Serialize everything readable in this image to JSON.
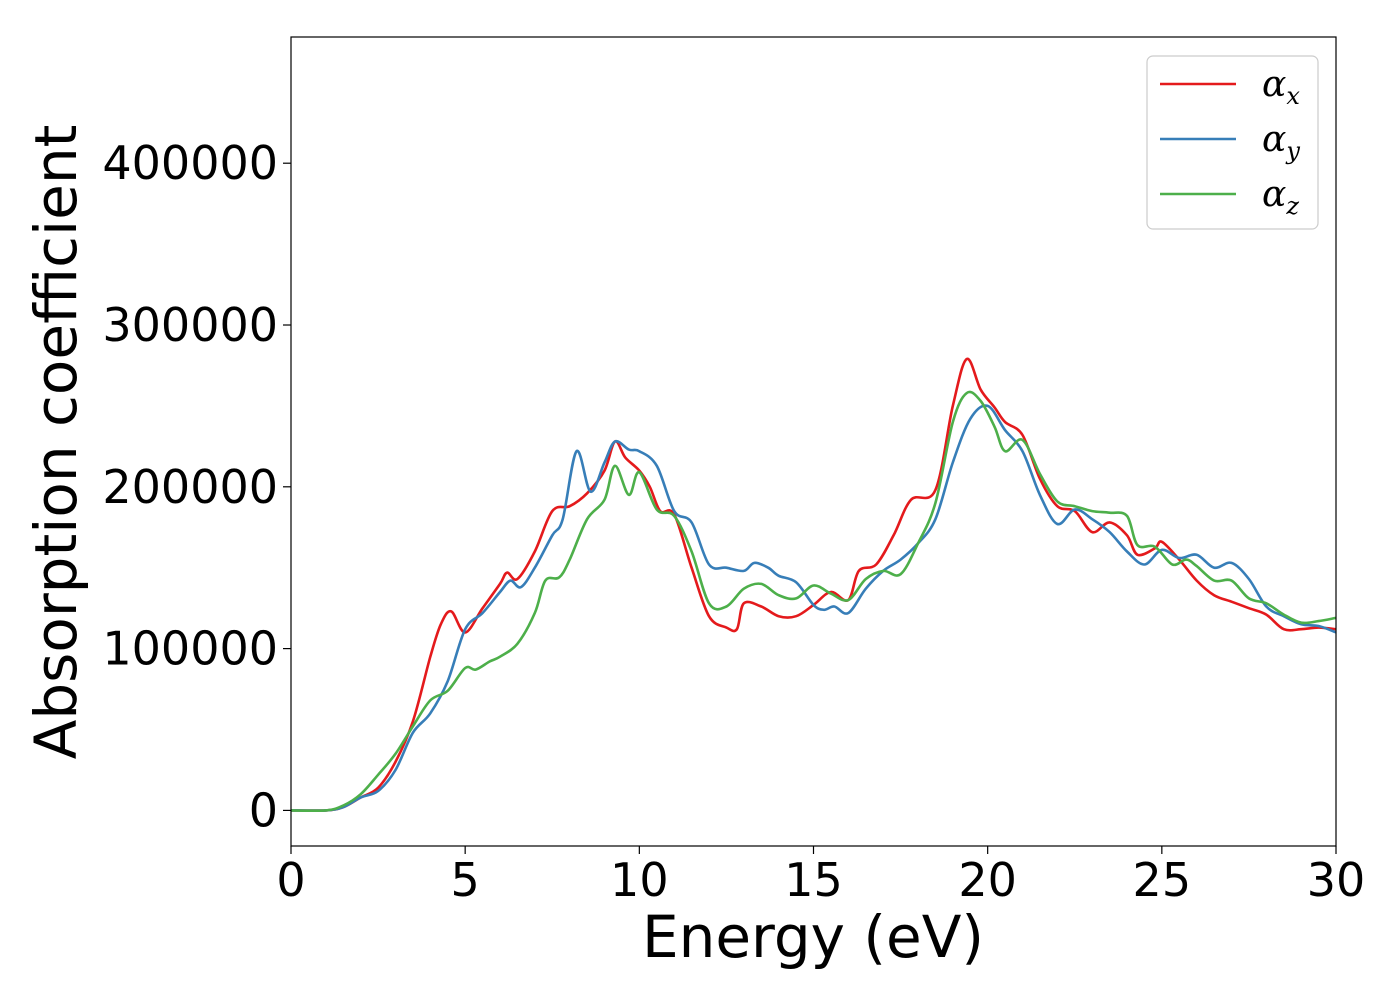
{
  "chart_data": {
    "type": "line",
    "xlabel": "Energy (eV)",
    "ylabel": "Absorption coefficient",
    "xlim": [
      0,
      30
    ],
    "ylim": [
      -22000,
      478000
    ],
    "xticks": [
      0,
      5,
      10,
      15,
      20,
      25,
      30
    ],
    "xtick_labels": [
      "0",
      "5",
      "10",
      "15",
      "20",
      "25",
      "30"
    ],
    "yticks": [
      0,
      100000,
      200000,
      300000,
      400000
    ],
    "ytick_labels": [
      "0",
      "100000",
      "200000",
      "300000",
      "400000"
    ],
    "grid": false,
    "legend_position": "top-right",
    "series": [
      {
        "name": "α",
        "subscript": "x",
        "color": "#e41a1c",
        "points": [
          [
            0,
            0
          ],
          [
            1,
            0
          ],
          [
            1.5,
            2000
          ],
          [
            2,
            8000
          ],
          [
            2.5,
            14000
          ],
          [
            3,
            30000
          ],
          [
            3.5,
            55000
          ],
          [
            4,
            95000
          ],
          [
            4.3,
            115000
          ],
          [
            4.6,
            123000
          ],
          [
            5,
            110000
          ],
          [
            5.5,
            125000
          ],
          [
            6,
            140000
          ],
          [
            6.2,
            147000
          ],
          [
            6.5,
            143000
          ],
          [
            7,
            160000
          ],
          [
            7.5,
            185000
          ],
          [
            8,
            188000
          ],
          [
            8.5,
            196000
          ],
          [
            9,
            210000
          ],
          [
            9.3,
            228000
          ],
          [
            9.6,
            218000
          ],
          [
            10,
            210000
          ],
          [
            10.3,
            200000
          ],
          [
            10.6,
            185000
          ],
          [
            11,
            183000
          ],
          [
            11.5,
            150000
          ],
          [
            12,
            120000
          ],
          [
            12.5,
            113000
          ],
          [
            12.8,
            112000
          ],
          [
            13,
            128000
          ],
          [
            13.5,
            126000
          ],
          [
            14,
            120000
          ],
          [
            14.5,
            120000
          ],
          [
            15,
            127000
          ],
          [
            15.5,
            135000
          ],
          [
            16,
            130000
          ],
          [
            16.3,
            148000
          ],
          [
            16.8,
            152000
          ],
          [
            17.3,
            170000
          ],
          [
            17.8,
            192000
          ],
          [
            18.5,
            198000
          ],
          [
            19,
            250000
          ],
          [
            19.4,
            279000
          ],
          [
            19.8,
            260000
          ],
          [
            20.2,
            249000
          ],
          [
            20.5,
            240000
          ],
          [
            21,
            232000
          ],
          [
            21.5,
            205000
          ],
          [
            22,
            188000
          ],
          [
            22.5,
            185000
          ],
          [
            23,
            172000
          ],
          [
            23.5,
            178000
          ],
          [
            24,
            170000
          ],
          [
            24.3,
            158000
          ],
          [
            24.8,
            162000
          ],
          [
            25,
            166000
          ],
          [
            25.5,
            155000
          ],
          [
            26,
            142000
          ],
          [
            26.5,
            133000
          ],
          [
            27,
            129000
          ],
          [
            27.5,
            125000
          ],
          [
            28,
            121000
          ],
          [
            28.5,
            112000
          ],
          [
            29,
            112000
          ],
          [
            29.5,
            113000
          ],
          [
            30,
            112000
          ]
        ]
      },
      {
        "name": "α",
        "subscript": "y",
        "color": "#377eb8",
        "points": [
          [
            0,
            0
          ],
          [
            1,
            0
          ],
          [
            1.5,
            2000
          ],
          [
            2,
            8000
          ],
          [
            2.5,
            12000
          ],
          [
            3,
            25000
          ],
          [
            3.5,
            48000
          ],
          [
            4,
            60000
          ],
          [
            4.5,
            80000
          ],
          [
            5,
            112000
          ],
          [
            5.5,
            122000
          ],
          [
            6,
            135000
          ],
          [
            6.3,
            142000
          ],
          [
            6.6,
            138000
          ],
          [
            7,
            150000
          ],
          [
            7.5,
            170000
          ],
          [
            7.8,
            180000
          ],
          [
            8.2,
            222000
          ],
          [
            8.6,
            197000
          ],
          [
            9,
            215000
          ],
          [
            9.3,
            228000
          ],
          [
            9.7,
            223000
          ],
          [
            10,
            222000
          ],
          [
            10.5,
            213000
          ],
          [
            11,
            185000
          ],
          [
            11.5,
            178000
          ],
          [
            12,
            152000
          ],
          [
            12.5,
            150000
          ],
          [
            13,
            148000
          ],
          [
            13.3,
            153000
          ],
          [
            13.7,
            150000
          ],
          [
            14,
            145000
          ],
          [
            14.5,
            141000
          ],
          [
            15,
            127000
          ],
          [
            15.3,
            124000
          ],
          [
            15.6,
            126000
          ],
          [
            16,
            122000
          ],
          [
            16.5,
            137000
          ],
          [
            17,
            148000
          ],
          [
            17.5,
            155000
          ],
          [
            18,
            165000
          ],
          [
            18.5,
            180000
          ],
          [
            19,
            215000
          ],
          [
            19.5,
            242000
          ],
          [
            20,
            250000
          ],
          [
            20.5,
            235000
          ],
          [
            21,
            222000
          ],
          [
            21.5,
            195000
          ],
          [
            22,
            177000
          ],
          [
            22.5,
            186000
          ],
          [
            23,
            180000
          ],
          [
            23.5,
            172000
          ],
          [
            24,
            160000
          ],
          [
            24.5,
            152000
          ],
          [
            25,
            161000
          ],
          [
            25.5,
            156000
          ],
          [
            26,
            158000
          ],
          [
            26.5,
            150000
          ],
          [
            27,
            153000
          ],
          [
            27.5,
            143000
          ],
          [
            28,
            126000
          ],
          [
            28.5,
            120000
          ],
          [
            29,
            115000
          ],
          [
            29.5,
            114000
          ],
          [
            30,
            110000
          ]
        ]
      },
      {
        "name": "α",
        "subscript": "z",
        "color": "#4daf4a",
        "points": [
          [
            0,
            0
          ],
          [
            1,
            0
          ],
          [
            1.5,
            3000
          ],
          [
            2,
            10000
          ],
          [
            2.5,
            22000
          ],
          [
            3,
            35000
          ],
          [
            3.5,
            52000
          ],
          [
            4,
            68000
          ],
          [
            4.5,
            74000
          ],
          [
            5,
            88000
          ],
          [
            5.3,
            87000
          ],
          [
            5.7,
            92000
          ],
          [
            6,
            95000
          ],
          [
            6.5,
            103000
          ],
          [
            7,
            122000
          ],
          [
            7.3,
            142000
          ],
          [
            7.7,
            144000
          ],
          [
            8,
            155000
          ],
          [
            8.5,
            180000
          ],
          [
            9,
            192000
          ],
          [
            9.3,
            213000
          ],
          [
            9.7,
            195000
          ],
          [
            10,
            209000
          ],
          [
            10.5,
            186000
          ],
          [
            11,
            182000
          ],
          [
            11.5,
            160000
          ],
          [
            12,
            128000
          ],
          [
            12.5,
            126000
          ],
          [
            13,
            137000
          ],
          [
            13.5,
            140000
          ],
          [
            14,
            133000
          ],
          [
            14.5,
            131000
          ],
          [
            15,
            139000
          ],
          [
            15.5,
            134000
          ],
          [
            16,
            130000
          ],
          [
            16.5,
            143000
          ],
          [
            17,
            148000
          ],
          [
            17.5,
            146000
          ],
          [
            18,
            165000
          ],
          [
            18.5,
            190000
          ],
          [
            19,
            240000
          ],
          [
            19.4,
            258000
          ],
          [
            19.8,
            253000
          ],
          [
            20.2,
            237000
          ],
          [
            20.5,
            222000
          ],
          [
            21,
            229000
          ],
          [
            21.5,
            208000
          ],
          [
            22,
            191000
          ],
          [
            22.5,
            188000
          ],
          [
            23,
            185000
          ],
          [
            23.5,
            184000
          ],
          [
            24,
            182000
          ],
          [
            24.3,
            164000
          ],
          [
            24.8,
            163000
          ],
          [
            25.3,
            152000
          ],
          [
            25.7,
            155000
          ],
          [
            26,
            151000
          ],
          [
            26.5,
            142000
          ],
          [
            27,
            142000
          ],
          [
            27.5,
            131000
          ],
          [
            28,
            128000
          ],
          [
            28.5,
            121000
          ],
          [
            29,
            116000
          ],
          [
            29.5,
            117000
          ],
          [
            30,
            119000
          ]
        ]
      }
    ]
  }
}
